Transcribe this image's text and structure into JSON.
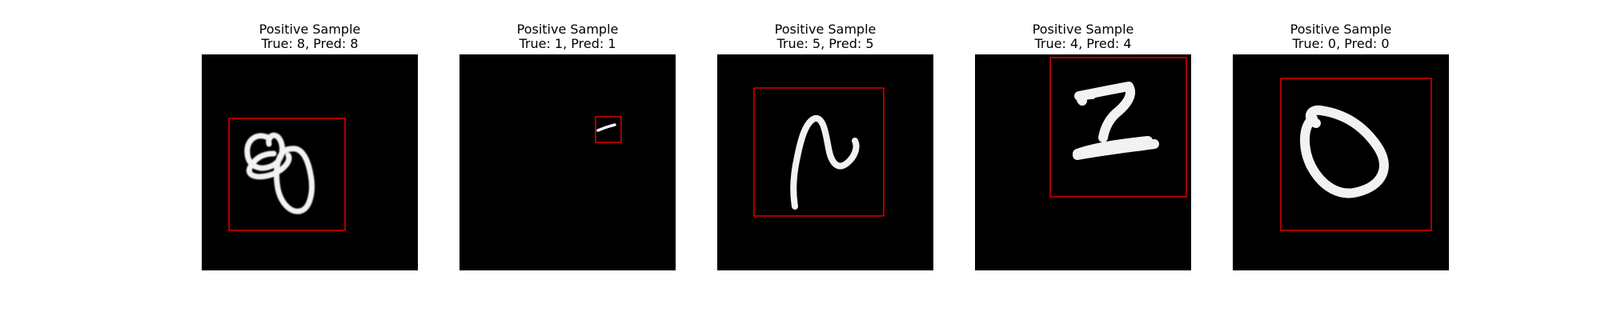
{
  "samples": [
    {
      "title": "Positive Sample",
      "label": "True: 8, Pred: 8",
      "true_class": 8,
      "pred_class": 8,
      "glyph": "digit-8-icon"
    },
    {
      "title": "Positive Sample",
      "label": "True: 1, Pred: 1",
      "true_class": 1,
      "pred_class": 1,
      "glyph": "digit-1-icon"
    },
    {
      "title": "Positive Sample",
      "label": "True: 5, Pred: 5",
      "true_class": 5,
      "pred_class": 5,
      "glyph": "digit-5-icon"
    },
    {
      "title": "Positive Sample",
      "label": "True: 4, Pred: 4",
      "true_class": 4,
      "pred_class": 4,
      "glyph": "digit-4-icon"
    },
    {
      "title": "Positive Sample",
      "label": "True: 0, Pred: 0",
      "true_class": 0,
      "pred_class": 0,
      "glyph": "digit-0-icon"
    }
  ],
  "colors": {
    "box": "#e00000",
    "digit": "#f2f2f2",
    "image_bg": "#000000"
  }
}
